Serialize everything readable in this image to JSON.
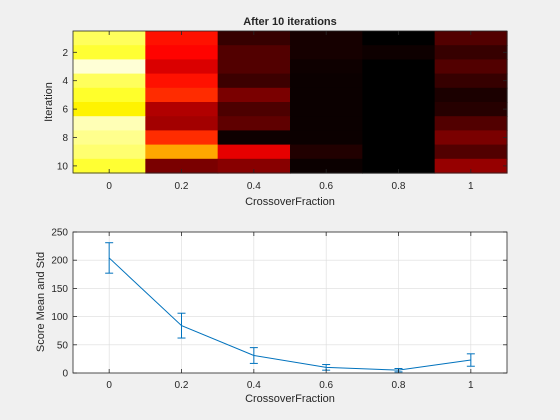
{
  "chart_data": [
    {
      "type": "heatmap",
      "title": "After 10 iterations",
      "xlabel": "CrossoverFraction",
      "ylabel": "Iteration",
      "x_categories": [
        "0",
        "0.2",
        "0.4",
        "0.6",
        "0.8",
        "1"
      ],
      "y_categories": [
        "1",
        "2",
        "3",
        "4",
        "5",
        "6",
        "7",
        "8",
        "9",
        "10"
      ],
      "yticks": [
        "2",
        "4",
        "6",
        "8",
        "10"
      ],
      "colormap": "hot",
      "clim": [
        0,
        250
      ],
      "values": [
        [
          210,
          100,
          20,
          8,
          0,
          30
        ],
        [
          200,
          95,
          30,
          8,
          5,
          20
        ],
        [
          240,
          80,
          30,
          5,
          0,
          30
        ],
        [
          210,
          100,
          22,
          4,
          0,
          20
        ],
        [
          198,
          110,
          45,
          4,
          0,
          10
        ],
        [
          183,
          65,
          28,
          4,
          0,
          14
        ],
        [
          232,
          60,
          35,
          4,
          0,
          30
        ],
        [
          222,
          110,
          5,
          4,
          0,
          45
        ],
        [
          215,
          155,
          85,
          12,
          0,
          30
        ],
        [
          200,
          45,
          50,
          4,
          0,
          55
        ]
      ]
    },
    {
      "type": "line",
      "xlabel": "CrossoverFraction",
      "ylabel": "Score Mean and Std",
      "x": [
        0,
        0.2,
        0.4,
        0.6,
        0.8,
        1
      ],
      "xticks": [
        "0",
        "0.2",
        "0.4",
        "0.6",
        "0.8",
        "1"
      ],
      "yticks": [
        "0",
        "50",
        "100",
        "150",
        "200",
        "250"
      ],
      "xlim": [
        -0.1,
        1.1
      ],
      "ylim": [
        0,
        250
      ],
      "grid": true,
      "line_color": "#0072bd",
      "series": [
        {
          "mean": [
            204,
            84,
            31,
            10,
            5,
            23
          ],
          "std": [
            27,
            22,
            14,
            5,
            3,
            11
          ]
        }
      ]
    }
  ]
}
